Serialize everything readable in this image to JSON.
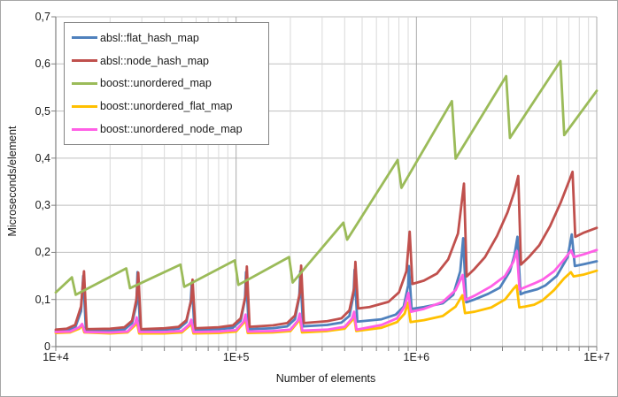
{
  "chart_data": {
    "type": "line",
    "title": "",
    "xlabel": "Number of elements",
    "ylabel": "Microseconds/element",
    "x_scale": "log",
    "xlim": [
      10000,
      10000000
    ],
    "ylim": [
      0,
      0.7
    ],
    "grid": true,
    "legend_position": "top-left",
    "x_ticks": [
      {
        "label": "1E+4",
        "value": 10000
      },
      {
        "label": "1E+5",
        "value": 100000
      },
      {
        "label": "1E+6",
        "value": 1000000
      },
      {
        "label": "1E+7",
        "value": 10000000
      }
    ],
    "y_ticks": [
      {
        "label": "0",
        "value": 0
      },
      {
        "label": "0,1",
        "value": 0.1
      },
      {
        "label": "0,2",
        "value": 0.2
      },
      {
        "label": "0,3",
        "value": 0.3
      },
      {
        "label": "0,4",
        "value": 0.4
      },
      {
        "label": "0,5",
        "value": 0.5
      },
      {
        "label": "0,6",
        "value": 0.6
      },
      {
        "label": "0,7",
        "value": 0.7
      }
    ],
    "series": [
      {
        "name": "absl::flat_hash_map",
        "color": "#4F81BD",
        "points": [
          [
            10000,
            0.033
          ],
          [
            11500,
            0.034
          ],
          [
            12800,
            0.04
          ],
          [
            13800,
            0.075
          ],
          [
            14200,
            0.15
          ],
          [
            14700,
            0.033
          ],
          [
            20000,
            0.034
          ],
          [
            24000,
            0.036
          ],
          [
            26500,
            0.05
          ],
          [
            28000,
            0.09
          ],
          [
            28400,
            0.158
          ],
          [
            29400,
            0.034
          ],
          [
            40000,
            0.036
          ],
          [
            48000,
            0.038
          ],
          [
            53000,
            0.052
          ],
          [
            56000,
            0.095
          ],
          [
            56800,
            0.136
          ],
          [
            58800,
            0.035
          ],
          [
            80000,
            0.037
          ],
          [
            96000,
            0.04
          ],
          [
            106000,
            0.055
          ],
          [
            112000,
            0.1
          ],
          [
            113500,
            0.158
          ],
          [
            117600,
            0.037
          ],
          [
            160000,
            0.039
          ],
          [
            192000,
            0.043
          ],
          [
            212000,
            0.058
          ],
          [
            224000,
            0.105
          ],
          [
            227000,
            0.16
          ],
          [
            235000,
            0.043
          ],
          [
            320000,
            0.046
          ],
          [
            384000,
            0.051
          ],
          [
            425000,
            0.065
          ],
          [
            448000,
            0.11
          ],
          [
            454000,
            0.163
          ],
          [
            470000,
            0.053
          ],
          [
            640000,
            0.058
          ],
          [
            768000,
            0.068
          ],
          [
            850000,
            0.085
          ],
          [
            900000,
            0.13
          ],
          [
            908000,
            0.171
          ],
          [
            940000,
            0.08
          ],
          [
            1100000,
            0.084
          ],
          [
            1400000,
            0.092
          ],
          [
            1600000,
            0.11
          ],
          [
            1750000,
            0.16
          ],
          [
            1816000,
            0.23
          ],
          [
            1890000,
            0.094
          ],
          [
            2100000,
            0.1
          ],
          [
            2500000,
            0.112
          ],
          [
            2900000,
            0.125
          ],
          [
            3300000,
            0.16
          ],
          [
            3500000,
            0.195
          ],
          [
            3633000,
            0.233
          ],
          [
            3780000,
            0.111
          ],
          [
            4000000,
            0.115
          ],
          [
            4300000,
            0.118
          ],
          [
            4700000,
            0.122
          ],
          [
            5200000,
            0.13
          ],
          [
            6000000,
            0.15
          ],
          [
            6900000,
            0.19
          ],
          [
            7266000,
            0.238
          ],
          [
            7560000,
            0.171
          ],
          [
            8500000,
            0.175
          ],
          [
            10000000,
            0.181
          ]
        ]
      },
      {
        "name": "absl::node_hash_map",
        "color": "#C0504D",
        "points": [
          [
            10000,
            0.036
          ],
          [
            11500,
            0.038
          ],
          [
            12800,
            0.046
          ],
          [
            13800,
            0.085
          ],
          [
            14336,
            0.16
          ],
          [
            14850,
            0.037
          ],
          [
            20000,
            0.038
          ],
          [
            24000,
            0.041
          ],
          [
            26500,
            0.055
          ],
          [
            28000,
            0.1
          ],
          [
            28672,
            0.157
          ],
          [
            29700,
            0.037
          ],
          [
            40000,
            0.039
          ],
          [
            48000,
            0.042
          ],
          [
            53000,
            0.056
          ],
          [
            56500,
            0.1
          ],
          [
            57344,
            0.142
          ],
          [
            59400,
            0.039
          ],
          [
            80000,
            0.041
          ],
          [
            96000,
            0.045
          ],
          [
            106000,
            0.06
          ],
          [
            113000,
            0.11
          ],
          [
            114688,
            0.17
          ],
          [
            118800,
            0.042
          ],
          [
            160000,
            0.045
          ],
          [
            192000,
            0.05
          ],
          [
            212000,
            0.066
          ],
          [
            226000,
            0.115
          ],
          [
            229376,
            0.172
          ],
          [
            237600,
            0.05
          ],
          [
            320000,
            0.054
          ],
          [
            384000,
            0.06
          ],
          [
            425000,
            0.077
          ],
          [
            452000,
            0.125
          ],
          [
            458752,
            0.18
          ],
          [
            475000,
            0.081
          ],
          [
            550000,
            0.084
          ],
          [
            700000,
            0.095
          ],
          [
            800000,
            0.115
          ],
          [
            880000,
            0.16
          ],
          [
            917504,
            0.244
          ],
          [
            950000,
            0.133
          ],
          [
            1100000,
            0.14
          ],
          [
            1300000,
            0.155
          ],
          [
            1500000,
            0.185
          ],
          [
            1700000,
            0.24
          ],
          [
            1835008,
            0.346
          ],
          [
            1900000,
            0.149
          ],
          [
            2100000,
            0.165
          ],
          [
            2400000,
            0.19
          ],
          [
            2800000,
            0.235
          ],
          [
            3200000,
            0.285
          ],
          [
            3500000,
            0.33
          ],
          [
            3670016,
            0.362
          ],
          [
            3800000,
            0.174
          ],
          [
            4200000,
            0.19
          ],
          [
            4800000,
            0.215
          ],
          [
            5500000,
            0.255
          ],
          [
            6300000,
            0.305
          ],
          [
            7000000,
            0.35
          ],
          [
            7340032,
            0.371
          ],
          [
            7600000,
            0.233
          ],
          [
            8500000,
            0.242
          ],
          [
            10000000,
            0.252
          ]
        ]
      },
      {
        "name": "boost::unordered_map",
        "color": "#9BBB59",
        "points": [
          [
            10000,
            0.115
          ],
          [
            12289,
            0.147
          ],
          [
            12900,
            0.11
          ],
          [
            24593,
            0.166
          ],
          [
            25800,
            0.124
          ],
          [
            49157,
            0.174
          ],
          [
            51600,
            0.127
          ],
          [
            98317,
            0.183
          ],
          [
            103000,
            0.131
          ],
          [
            196613,
            0.19
          ],
          [
            206000,
            0.136
          ],
          [
            393241,
            0.263
          ],
          [
            413000,
            0.227
          ],
          [
            786433,
            0.396
          ],
          [
            826000,
            0.337
          ],
          [
            1572869,
            0.521
          ],
          [
            1650000,
            0.399
          ],
          [
            3145739,
            0.574
          ],
          [
            3300000,
            0.443
          ],
          [
            6291469,
            0.606
          ],
          [
            6600000,
            0.449
          ],
          [
            10000000,
            0.543
          ]
        ]
      },
      {
        "name": "boost::unordered_flat_map",
        "color": "#FFC000",
        "points": [
          [
            10000,
            0.029
          ],
          [
            12000,
            0.03
          ],
          [
            13500,
            0.038
          ],
          [
            14000,
            0.045
          ],
          [
            14400,
            0.03
          ],
          [
            20000,
            0.028
          ],
          [
            25000,
            0.03
          ],
          [
            27500,
            0.045
          ],
          [
            28000,
            0.056
          ],
          [
            29000,
            0.028
          ],
          [
            40000,
            0.028
          ],
          [
            50000,
            0.03
          ],
          [
            55000,
            0.044
          ],
          [
            56200,
            0.051
          ],
          [
            58000,
            0.028
          ],
          [
            80000,
            0.029
          ],
          [
            100000,
            0.032
          ],
          [
            110000,
            0.05
          ],
          [
            112400,
            0.061
          ],
          [
            116000,
            0.029
          ],
          [
            160000,
            0.03
          ],
          [
            200000,
            0.033
          ],
          [
            220000,
            0.052
          ],
          [
            224800,
            0.063
          ],
          [
            232000,
            0.03
          ],
          [
            320000,
            0.033
          ],
          [
            400000,
            0.038
          ],
          [
            440000,
            0.056
          ],
          [
            449600,
            0.068
          ],
          [
            464000,
            0.033
          ],
          [
            640000,
            0.04
          ],
          [
            780000,
            0.052
          ],
          [
            860000,
            0.07
          ],
          [
            899000,
            0.093
          ],
          [
            928000,
            0.052
          ],
          [
            1100000,
            0.056
          ],
          [
            1400000,
            0.065
          ],
          [
            1650000,
            0.085
          ],
          [
            1798000,
            0.109
          ],
          [
            1860000,
            0.071
          ],
          [
            2100000,
            0.074
          ],
          [
            2600000,
            0.083
          ],
          [
            3100000,
            0.1
          ],
          [
            3440000,
            0.122
          ],
          [
            3596000,
            0.13
          ],
          [
            3720000,
            0.083
          ],
          [
            4000000,
            0.085
          ],
          [
            4500000,
            0.089
          ],
          [
            5000000,
            0.098
          ],
          [
            5800000,
            0.12
          ],
          [
            6600000,
            0.145
          ],
          [
            7190000,
            0.158
          ],
          [
            7440000,
            0.149
          ],
          [
            8500000,
            0.153
          ],
          [
            10000000,
            0.161
          ]
        ]
      },
      {
        "name": "boost::unordered_node_map",
        "color": "#FF5FE6",
        "points": [
          [
            10000,
            0.031
          ],
          [
            12000,
            0.032
          ],
          [
            13500,
            0.041
          ],
          [
            14000,
            0.048
          ],
          [
            14500,
            0.031
          ],
          [
            20000,
            0.03
          ],
          [
            25000,
            0.032
          ],
          [
            27500,
            0.049
          ],
          [
            28100,
            0.062
          ],
          [
            29100,
            0.031
          ],
          [
            40000,
            0.031
          ],
          [
            50000,
            0.033
          ],
          [
            55000,
            0.047
          ],
          [
            56400,
            0.057
          ],
          [
            58200,
            0.031
          ],
          [
            80000,
            0.032
          ],
          [
            100000,
            0.035
          ],
          [
            110000,
            0.053
          ],
          [
            112800,
            0.068
          ],
          [
            116400,
            0.032
          ],
          [
            160000,
            0.033
          ],
          [
            200000,
            0.036
          ],
          [
            220000,
            0.055
          ],
          [
            225600,
            0.07
          ],
          [
            232800,
            0.034
          ],
          [
            320000,
            0.036
          ],
          [
            400000,
            0.042
          ],
          [
            440000,
            0.06
          ],
          [
            451200,
            0.074
          ],
          [
            465600,
            0.036
          ],
          [
            640000,
            0.046
          ],
          [
            780000,
            0.06
          ],
          [
            860000,
            0.085
          ],
          [
            902000,
            0.114
          ],
          [
            931000,
            0.074
          ],
          [
            1100000,
            0.08
          ],
          [
            1400000,
            0.095
          ],
          [
            1650000,
            0.12
          ],
          [
            1804000,
            0.152
          ],
          [
            1866000,
            0.099
          ],
          [
            2100000,
            0.108
          ],
          [
            2600000,
            0.128
          ],
          [
            3100000,
            0.15
          ],
          [
            3450000,
            0.18
          ],
          [
            3608000,
            0.203
          ],
          [
            3730000,
            0.121
          ],
          [
            4000000,
            0.126
          ],
          [
            4500000,
            0.134
          ],
          [
            5000000,
            0.142
          ],
          [
            5800000,
            0.16
          ],
          [
            6600000,
            0.185
          ],
          [
            7215000,
            0.204
          ],
          [
            7460000,
            0.19
          ],
          [
            8500000,
            0.196
          ],
          [
            10000000,
            0.205
          ]
        ]
      }
    ]
  }
}
